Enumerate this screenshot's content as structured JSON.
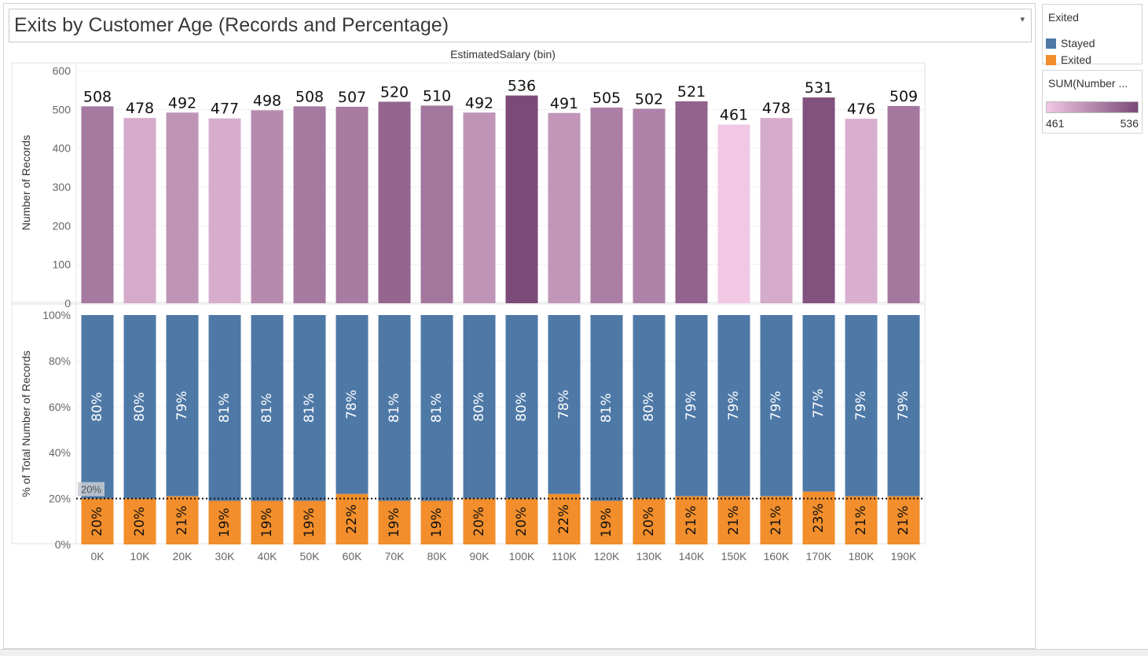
{
  "title": "Exits by Customer Age (Records and Percentage)",
  "colors": {
    "stayed": "#4e79a7",
    "exited": "#f28e2b",
    "gradient_low": "#f0c8e4",
    "gradient_high": "#7a4a78"
  },
  "legend_color": {
    "title": "Exited",
    "items": [
      {
        "label": "Stayed",
        "color": "#4e79a7"
      },
      {
        "label": "Exited",
        "color": "#f28e2b"
      }
    ]
  },
  "legend_size": {
    "title": "SUM(Number ...",
    "min": "461",
    "max": "536"
  },
  "chart_data": [
    {
      "type": "bar",
      "x_title": "EstimatedSalary (bin)",
      "ylabel": "Number of Records",
      "ylim": [
        0,
        600
      ],
      "yticks": [
        0,
        100,
        200,
        300,
        400,
        500,
        600
      ],
      "categories": [
        "0K",
        "10K",
        "20K",
        "30K",
        "40K",
        "50K",
        "60K",
        "70K",
        "80K",
        "90K",
        "100K",
        "110K",
        "120K",
        "130K",
        "140K",
        "150K",
        "160K",
        "170K",
        "180K",
        "190K"
      ],
      "values": [
        508,
        478,
        492,
        477,
        498,
        508,
        507,
        520,
        510,
        492,
        536,
        491,
        505,
        502,
        521,
        461,
        478,
        531,
        476,
        509
      ],
      "color_encoding": "sequential purple by SUM(Number of Records)"
    },
    {
      "type": "bar",
      "stacked": true,
      "ylabel": "% of Total Number of Records",
      "ylim": [
        0,
        100
      ],
      "yticks": [
        "0%",
        "20%",
        "40%",
        "60%",
        "80%",
        "100%"
      ],
      "categories": [
        "0K",
        "10K",
        "20K",
        "30K",
        "40K",
        "50K",
        "60K",
        "70K",
        "80K",
        "90K",
        "100K",
        "110K",
        "120K",
        "130K",
        "140K",
        "150K",
        "160K",
        "170K",
        "180K",
        "190K"
      ],
      "series": [
        {
          "name": "Stayed",
          "values": [
            80,
            80,
            79,
            81,
            81,
            81,
            78,
            81,
            81,
            80,
            80,
            78,
            81,
            80,
            79,
            79,
            79,
            77,
            79,
            79
          ]
        },
        {
          "name": "Exited",
          "values": [
            20,
            20,
            21,
            19,
            19,
            19,
            22,
            19,
            19,
            20,
            20,
            22,
            19,
            20,
            21,
            21,
            21,
            23,
            21,
            21
          ]
        }
      ],
      "reference_line": {
        "value": 20,
        "label": "20%"
      }
    }
  ]
}
